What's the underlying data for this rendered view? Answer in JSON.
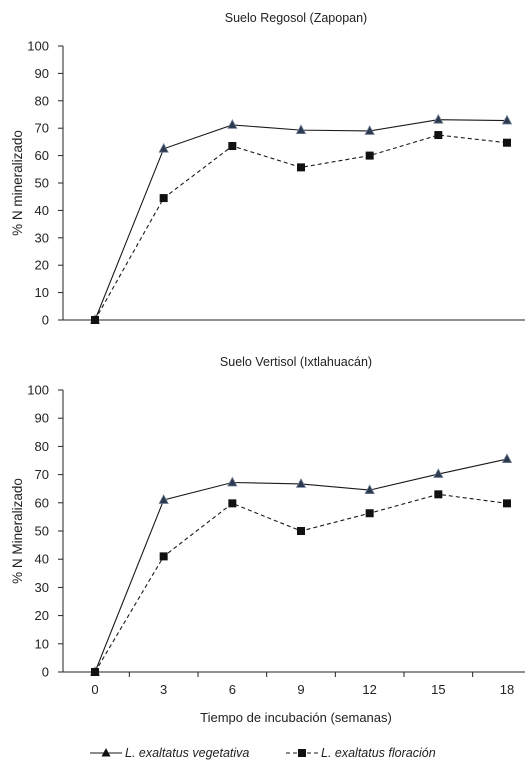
{
  "chart_data": [
    {
      "type": "line",
      "title": "Suelo Regosol (Zapopan)",
      "ylabel": "% N mineralizado",
      "xlabel": "",
      "ylim": [
        0,
        100
      ],
      "yticks": [
        0,
        10,
        20,
        30,
        40,
        50,
        60,
        70,
        80,
        90,
        100
      ],
      "x": [
        0,
        3,
        6,
        9,
        12,
        15,
        18
      ],
      "xticks_visible": false,
      "series": [
        {
          "name": "L. exaltatus vegetativa",
          "marker": "triangle",
          "line": "solid",
          "values": [
            0,
            62.5,
            71.2,
            69.3,
            69.0,
            73.1,
            72.8
          ]
        },
        {
          "name": "L. exaltatus floración",
          "marker": "square",
          "line": "dashed",
          "values": [
            0,
            44.5,
            63.5,
            55.7,
            60.0,
            67.5,
            64.7
          ]
        }
      ]
    },
    {
      "type": "line",
      "title": "Suelo Vertisol (Ixtlahuacán)",
      "ylabel": "% N Mineralizado",
      "xlabel": "Tiempo de incubación (semanas)",
      "ylim": [
        0,
        100
      ],
      "yticks": [
        0,
        10,
        20,
        30,
        40,
        50,
        60,
        70,
        80,
        90,
        100
      ],
      "x": [
        0,
        3,
        6,
        9,
        12,
        15,
        18
      ],
      "xticks_visible": true,
      "series": [
        {
          "name": "L. exaltatus vegetativa",
          "marker": "triangle",
          "line": "solid",
          "values": [
            0,
            61.0,
            67.2,
            66.7,
            64.5,
            70.2,
            75.5
          ]
        },
        {
          "name": "L. exaltatus floración",
          "marker": "square",
          "line": "dashed",
          "values": [
            0,
            41.0,
            59.8,
            50.0,
            56.3,
            63.0,
            59.8
          ]
        }
      ]
    }
  ],
  "legend": {
    "position": "bottom",
    "items": [
      {
        "label": "L. exaltatus vegetativa",
        "marker": "triangle",
        "line": "solid"
      },
      {
        "label": "L. exaltatus floración",
        "marker": "square",
        "line": "dashed"
      }
    ]
  },
  "colors": {
    "line": "#1a1a1a",
    "triangle_fill": "#2e3a4f",
    "axis": "#222222",
    "background": "#ffffff"
  }
}
